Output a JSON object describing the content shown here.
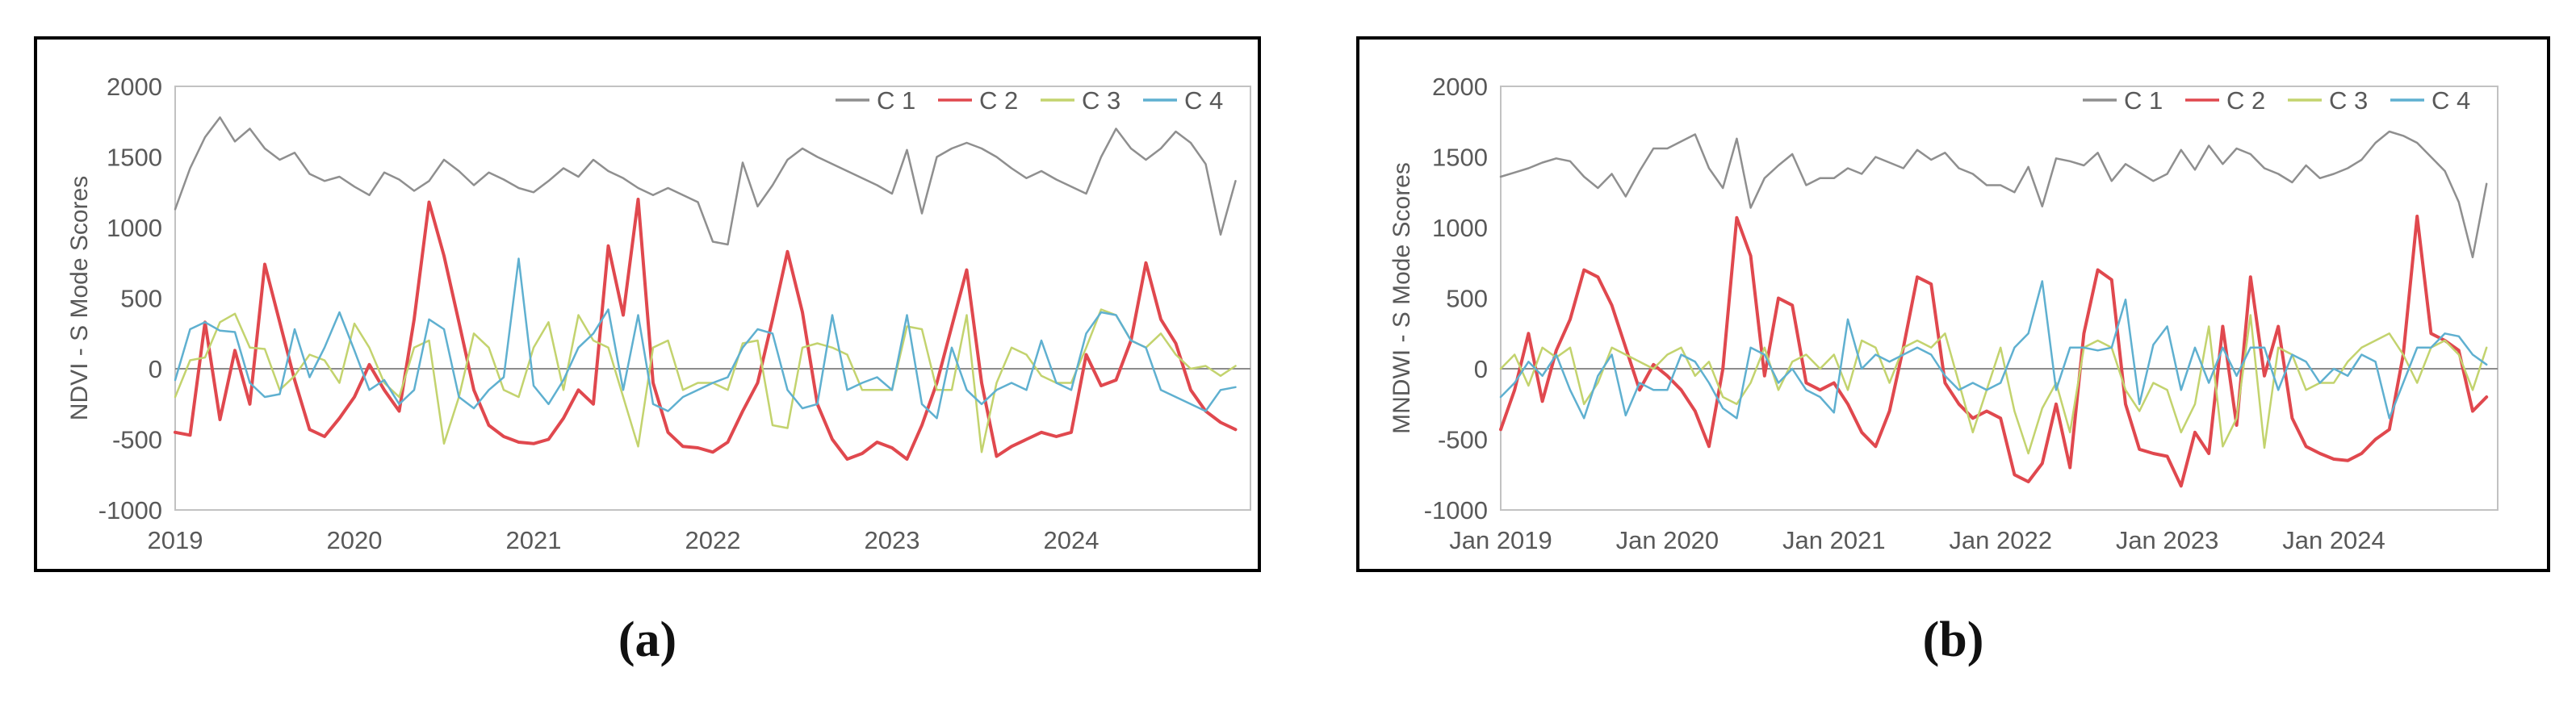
{
  "figure": {
    "background": "#ffffff",
    "panel_border_color": "#000000",
    "plot_border_color": "#c2c2c2",
    "zero_line_color": "#8c8c8c",
    "axis_text_color": "#595959",
    "captions": {
      "a": "(a)",
      "b": "(b)"
    }
  },
  "chart_data": [
    {
      "type": "line",
      "caption": "(a)",
      "ylabel": "NDVI - S Mode Scores",
      "xlabel": "",
      "x_tick_labels": [
        "2019",
        "2020",
        "2021",
        "2022",
        "2023",
        "2024"
      ],
      "x_tick_month_indices": [
        0,
        12,
        24,
        36,
        48,
        60
      ],
      "x_unit": "month, Jan 2019 - Dec 2024",
      "y_ticks": [
        2000,
        1500,
        1000,
        500,
        0,
        -500,
        -1000
      ],
      "ylim": [
        -1000,
        2000
      ],
      "grid": false,
      "zero_line": true,
      "legend_position": "top-right-inside",
      "series": [
        {
          "name": "C 1",
          "color": "#8f8f8f",
          "width": 2.5,
          "values": [
            1130,
            1420,
            1640,
            1780,
            1610,
            1700,
            1560,
            1480,
            1530,
            1380,
            1330,
            1360,
            1290,
            1230,
            1390,
            1340,
            1260,
            1330,
            1480,
            1400,
            1300,
            1390,
            1340,
            1280,
            1250,
            1330,
            1420,
            1360,
            1480,
            1400,
            1350,
            1280,
            1230,
            1280,
            1230,
            1180,
            900,
            880,
            1460,
            1150,
            1300,
            1480,
            1560,
            1500,
            1450,
            1400,
            1350,
            1300,
            1240,
            1550,
            1100,
            1500,
            1560,
            1600,
            1560,
            1500,
            1420,
            1350,
            1400,
            1340,
            1290,
            1240,
            1500,
            1700,
            1560,
            1480,
            1560,
            1680,
            1600,
            1450,
            950,
            1330
          ]
        },
        {
          "name": "C 2",
          "color": "#e0484e",
          "width": 4,
          "values": [
            -450,
            -470,
            330,
            -360,
            130,
            -250,
            740,
            330,
            -80,
            -430,
            -480,
            -350,
            -200,
            30,
            -150,
            -300,
            350,
            1180,
            800,
            330,
            -150,
            -400,
            -480,
            -520,
            -530,
            -500,
            -350,
            -150,
            -250,
            870,
            380,
            1200,
            -100,
            -450,
            -550,
            -560,
            -590,
            -520,
            -300,
            -100,
            350,
            830,
            400,
            -250,
            -500,
            -640,
            -600,
            -520,
            -560,
            -640,
            -400,
            -100,
            300,
            700,
            -100,
            -620,
            -550,
            -500,
            -450,
            -480,
            -450,
            100,
            -120,
            -80,
            200,
            750,
            350,
            180,
            -150,
            -300,
            -380,
            -430
          ]
        },
        {
          "name": "C 3",
          "color": "#c3d36e",
          "width": 2.5,
          "values": [
            -200,
            60,
            80,
            330,
            390,
            150,
            140,
            -150,
            -50,
            100,
            60,
            -100,
            320,
            150,
            -100,
            -200,
            150,
            200,
            -530,
            -200,
            250,
            150,
            -150,
            -200,
            150,
            330,
            -150,
            380,
            200,
            150,
            -200,
            -550,
            150,
            200,
            -150,
            -100,
            -100,
            -150,
            180,
            200,
            -400,
            -420,
            150,
            180,
            150,
            100,
            -150,
            -150,
            -150,
            300,
            280,
            -150,
            -150,
            380,
            -590,
            -100,
            150,
            100,
            -50,
            -100,
            -100,
            150,
            420,
            380,
            200,
            150,
            250,
            100,
            0,
            20,
            -50,
            20
          ]
        },
        {
          "name": "C 4",
          "color": "#5fb0d0",
          "width": 2.5,
          "values": [
            -80,
            280,
            330,
            270,
            260,
            -100,
            -200,
            -180,
            280,
            -60,
            150,
            400,
            130,
            -150,
            -80,
            -250,
            -150,
            350,
            280,
            -200,
            -280,
            -150,
            -60,
            780,
            -120,
            -250,
            -80,
            150,
            250,
            420,
            -150,
            380,
            -250,
            -300,
            -200,
            -150,
            -100,
            -60,
            150,
            280,
            250,
            -150,
            -280,
            -250,
            380,
            -150,
            -100,
            -60,
            -150,
            380,
            -250,
            -350,
            150,
            -150,
            -250,
            -150,
            -100,
            -150,
            200,
            -100,
            -150,
            250,
            400,
            380,
            200,
            150,
            -150,
            -200,
            -250,
            -300,
            -150,
            -130
          ]
        }
      ]
    },
    {
      "type": "line",
      "caption": "(b)",
      "ylabel": "MNDWI - S Mode Scores",
      "xlabel": "",
      "x_tick_labels": [
        "Jan 2019",
        "Jan 2020",
        "Jan 2021",
        "Jan 2022",
        "Jan 2023",
        "Jan 2024"
      ],
      "x_tick_month_indices": [
        0,
        12,
        24,
        36,
        48,
        60
      ],
      "x_unit": "month, Jan 2019 - Dec 2024",
      "y_ticks": [
        2000,
        1500,
        1000,
        500,
        0,
        -500,
        -1000
      ],
      "ylim": [
        -1000,
        2000
      ],
      "grid": false,
      "zero_line": true,
      "legend_position": "top-right-inside",
      "series": [
        {
          "name": "C 1",
          "color": "#8f8f8f",
          "width": 2.5,
          "values": [
            1360,
            1390,
            1420,
            1460,
            1490,
            1470,
            1360,
            1280,
            1380,
            1220,
            1400,
            1560,
            1560,
            1610,
            1660,
            1420,
            1280,
            1630,
            1140,
            1350,
            1440,
            1520,
            1300,
            1350,
            1350,
            1420,
            1380,
            1500,
            1460,
            1420,
            1550,
            1480,
            1530,
            1420,
            1380,
            1300,
            1300,
            1250,
            1430,
            1150,
            1490,
            1470,
            1440,
            1530,
            1330,
            1450,
            1390,
            1330,
            1380,
            1550,
            1410,
            1580,
            1450,
            1560,
            1520,
            1420,
            1380,
            1320,
            1440,
            1350,
            1380,
            1420,
            1480,
            1600,
            1680,
            1650,
            1600,
            1500,
            1400,
            1180,
            790,
            1310
          ]
        },
        {
          "name": "C 2",
          "color": "#e0484e",
          "width": 4,
          "values": [
            -430,
            -150,
            250,
            -230,
            130,
            350,
            700,
            650,
            450,
            150,
            -150,
            30,
            -50,
            -150,
            -300,
            -550,
            0,
            1070,
            800,
            -50,
            500,
            450,
            -100,
            -150,
            -100,
            -250,
            -450,
            -550,
            -300,
            150,
            650,
            600,
            -100,
            -250,
            -350,
            -300,
            -350,
            -750,
            -800,
            -670,
            -250,
            -700,
            250,
            700,
            630,
            -250,
            -570,
            -600,
            -620,
            -830,
            -450,
            -600,
            300,
            -400,
            650,
            -50,
            300,
            -350,
            -550,
            -600,
            -640,
            -650,
            -600,
            -500,
            -430,
            100,
            1080,
            250,
            200,
            130,
            -300,
            -200
          ]
        },
        {
          "name": "C 3",
          "color": "#c3d36e",
          "width": 2.5,
          "values": [
            0,
            100,
            -120,
            150,
            80,
            150,
            -250,
            -100,
            150,
            100,
            50,
            0,
            100,
            150,
            -50,
            50,
            -200,
            -250,
            -100,
            150,
            -150,
            50,
            100,
            0,
            100,
            -150,
            200,
            150,
            -100,
            150,
            200,
            150,
            250,
            -100,
            -450,
            -150,
            150,
            -300,
            -600,
            -280,
            -100,
            -450,
            150,
            200,
            150,
            -150,
            -300,
            -100,
            -150,
            -450,
            -250,
            300,
            -550,
            -350,
            380,
            -560,
            150,
            100,
            -150,
            -100,
            -100,
            50,
            150,
            200,
            250,
            100,
            -100,
            150,
            200,
            100,
            -150,
            150
          ]
        },
        {
          "name": "C 4",
          "color": "#5fb0d0",
          "width": 2.5,
          "values": [
            -200,
            -100,
            50,
            -50,
            100,
            -150,
            -350,
            -50,
            100,
            -330,
            -100,
            -150,
            -150,
            100,
            50,
            -100,
            -280,
            -350,
            150,
            100,
            -100,
            0,
            -150,
            -200,
            -310,
            350,
            0,
            100,
            50,
            100,
            150,
            100,
            -50,
            -150,
            -100,
            -150,
            -100,
            150,
            250,
            620,
            -150,
            150,
            150,
            130,
            150,
            490,
            -250,
            170,
            300,
            -150,
            150,
            -100,
            150,
            -50,
            150,
            150,
            -150,
            100,
            50,
            -100,
            0,
            -50,
            100,
            50,
            -350,
            -100,
            150,
            150,
            250,
            230,
            100,
            30
          ]
        }
      ]
    }
  ]
}
